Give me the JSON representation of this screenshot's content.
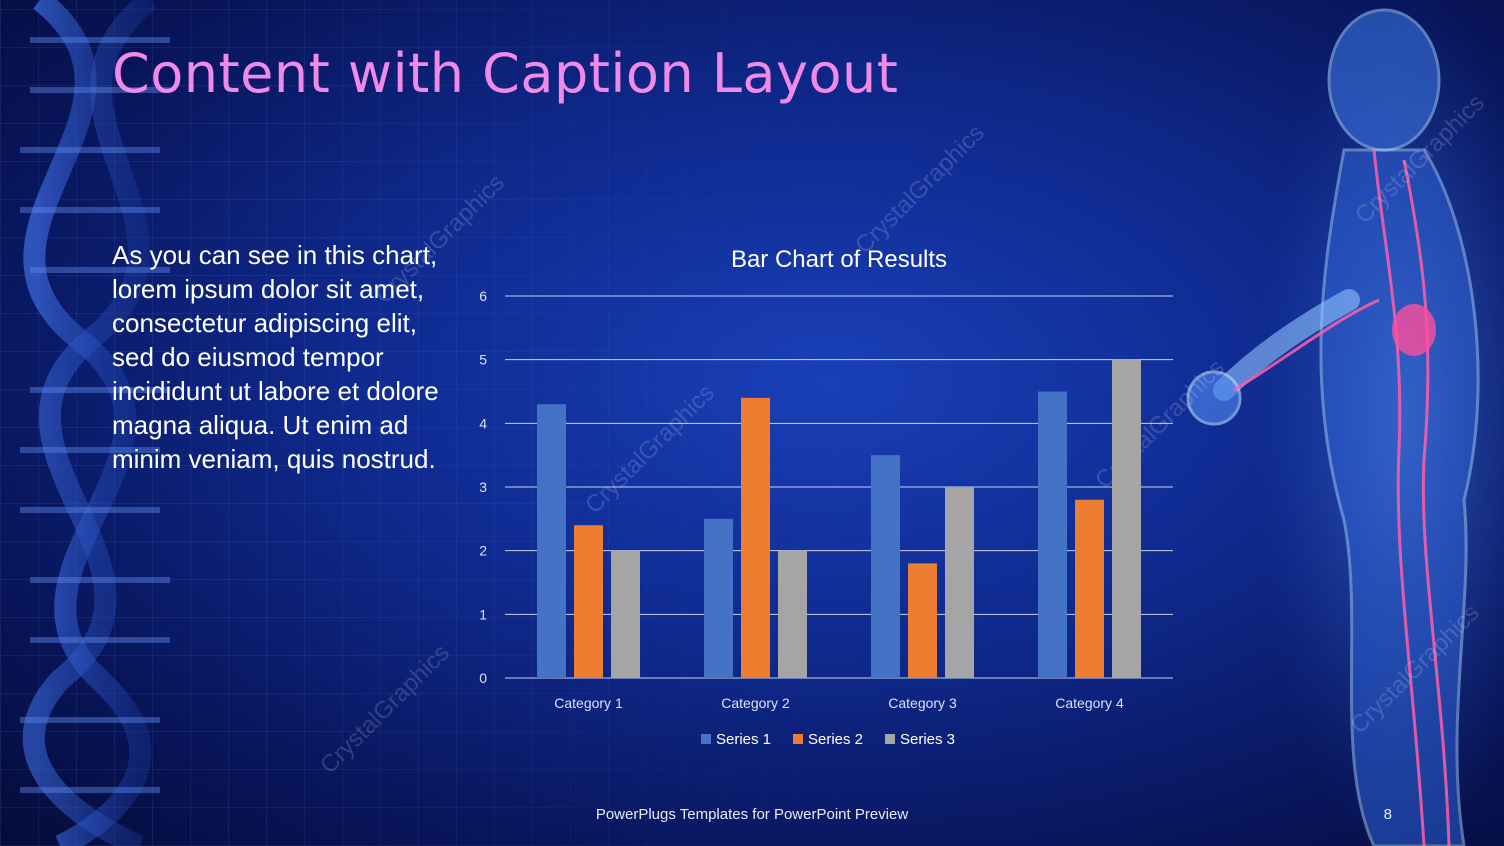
{
  "slide": {
    "title": "Content with Caption Layout",
    "caption": "As you can see in this chart, lorem ipsum dolor sit amet, consectetur adipiscing elit, sed do eiusmod tempor incididunt ut labore et dolore magna aliqua. Ut enim ad minim veniam, quis nostrud.",
    "footer": "PowerPlugs Templates for PowerPoint Preview",
    "page_number": "8",
    "watermark": "CrystalGraphics",
    "colors": {
      "title": "#f08ae8",
      "text": "#ffffff",
      "background": "#0f2a8f"
    }
  },
  "chart_data": {
    "type": "bar",
    "title": "Bar Chart of Results",
    "xlabel": "",
    "ylabel": "",
    "categories": [
      "Category 1",
      "Category 2",
      "Category 3",
      "Category 4"
    ],
    "series": [
      {
        "name": "Series 1",
        "values": [
          4.3,
          2.5,
          3.5,
          4.5
        ],
        "color": "#4472c4"
      },
      {
        "name": "Series 2",
        "values": [
          2.4,
          4.4,
          1.8,
          2.8
        ],
        "color": "#ed7d31"
      },
      {
        "name": "Series 3",
        "values": [
          2.0,
          2.0,
          3.0,
          5.0
        ],
        "color": "#a5a5a5"
      }
    ],
    "ylim": [
      0,
      6
    ],
    "yticks": [
      "0",
      "1",
      "2",
      "3",
      "4",
      "5",
      "6"
    ],
    "grid": true,
    "legend": "bottom"
  }
}
